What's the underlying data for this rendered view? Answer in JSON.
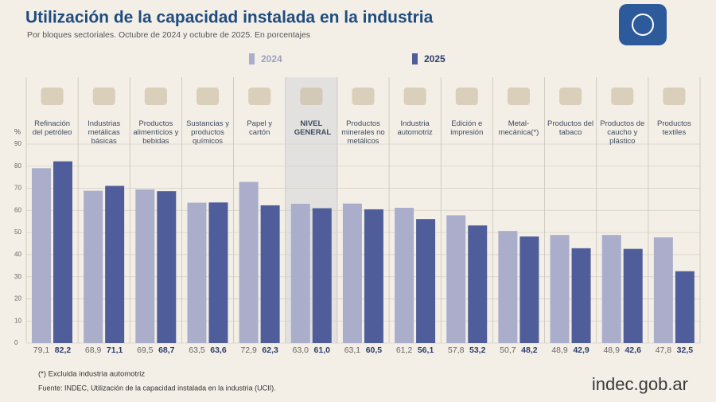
{
  "chart_data": {
    "type": "bar",
    "title": "Utilización de la capacidad instalada en la industria",
    "subtitle": "Por bloques sectoriales. Octubre de 2024 y octubre de 2025. En porcentajes",
    "y_label": "%",
    "categories": [
      "Refinación del petróleo",
      "Industrias metálicas básicas",
      "Productos alimenticios y bebidas",
      "Sustancias y productos químicos",
      "Papel y cartón",
      "NIVEL GENERAL",
      "Productos minerales no metálicos",
      "Industria automotriz",
      "Edición e impresión",
      "Metal-mecánica(*)",
      "Productos del tabaco",
      "Productos de caucho y plástico",
      "Productos textiles"
    ],
    "series": [
      {
        "name": "2024",
        "color": "#aaaecb",
        "values": [
          79.1,
          68.9,
          69.5,
          63.5,
          72.9,
          63.0,
          63.1,
          61.2,
          57.8,
          50.7,
          48.9,
          48.9,
          47.8
        ],
        "value_labels": [
          "79,1",
          "68,9",
          "69,5",
          "63,5",
          "72,9",
          "63,0",
          "63,1",
          "61,2",
          "57,8",
          "50,7",
          "48,9",
          "48,9",
          "47,8"
        ]
      },
      {
        "name": "2025",
        "color": "#4f5e9b",
        "values": [
          82.2,
          71.1,
          68.7,
          63.6,
          62.3,
          61.0,
          60.5,
          56.1,
          53.2,
          48.2,
          42.9,
          42.6,
          32.5
        ],
        "value_labels": [
          "82,2",
          "71,1",
          "68,7",
          "63,6",
          "62,3",
          "61,0",
          "60,5",
          "56,1",
          "53,2",
          "48,2",
          "42,9",
          "42,6",
          "32,5"
        ]
      }
    ],
    "highlight": "NIVEL GENERAL",
    "ylim": [
      0,
      90
    ],
    "yticks": [
      0,
      10,
      20,
      30,
      40,
      50,
      60,
      70,
      80,
      90
    ],
    "grid": true,
    "footnote": "(*) Excluida industria automotriz",
    "source": "Fuente: INDEC, Utilización de la capacidad instalada en la industria (UCII).",
    "brand": "indec.gob.ar"
  }
}
